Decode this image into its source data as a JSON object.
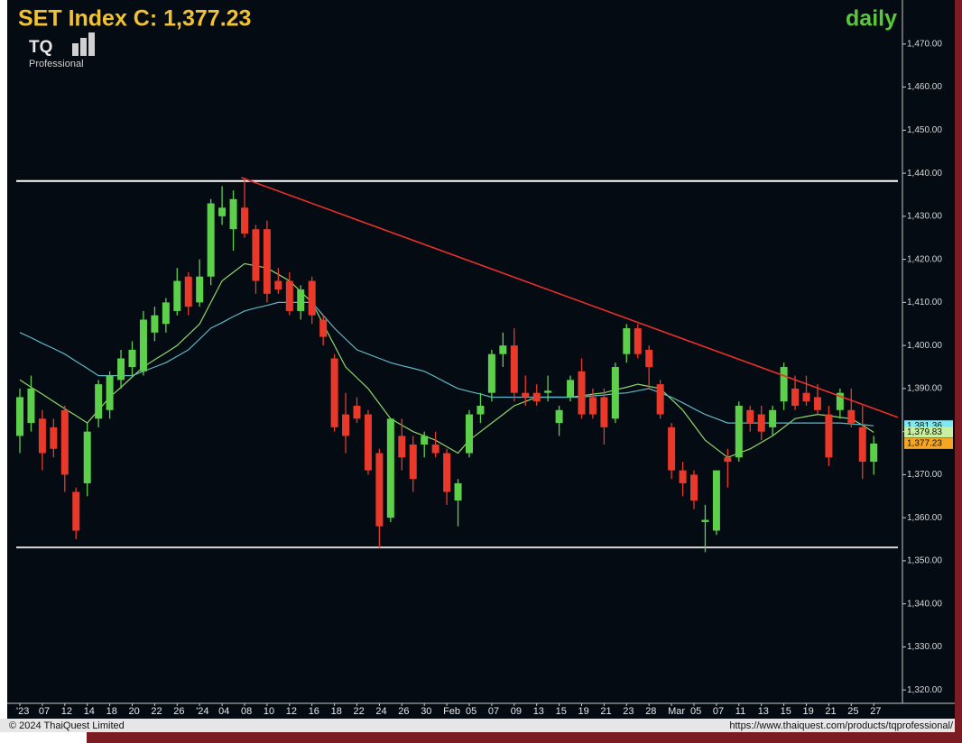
{
  "chart_data": {
    "type": "candlestick",
    "title": "SET Index C: 1,377.23",
    "period": "daily",
    "logo": {
      "mark": "TQ",
      "caption": "Professional"
    },
    "footer_left": "© 2024 ThaiQuest Limited",
    "footer_right": "https://www.thaiquest.com/products/tqprofessional/",
    "categories": [
      "'23",
      null,
      "07",
      null,
      "12",
      null,
      "14",
      null,
      "18",
      null,
      "20",
      null,
      "22",
      null,
      "26",
      null,
      "'24",
      null,
      "04",
      null,
      "08",
      null,
      "10",
      null,
      "12",
      null,
      "16",
      null,
      "18",
      null,
      "22",
      null,
      "24",
      null,
      "26",
      null,
      "30",
      null,
      "Feb",
      null,
      "05",
      null,
      "07",
      null,
      "09",
      null,
      "13",
      null,
      "15",
      null,
      "19",
      null,
      "21",
      null,
      "23",
      null,
      "28",
      null,
      "Mar",
      null,
      "05",
      null,
      "07",
      null,
      "11",
      null,
      "13",
      null,
      "15",
      null,
      "19",
      null,
      "21",
      null,
      "25",
      null,
      "27"
    ],
    "open": [
      1379,
      1382,
      1383,
      1381,
      1385,
      1366,
      1368,
      1383,
      1385,
      1392,
      1395,
      1394,
      1403,
      1405,
      1408,
      1416,
      1410,
      1416,
      1430,
      1427,
      1432,
      1427,
      1427,
      1415,
      1415,
      1408,
      1415,
      1406,
      1397,
      1384,
      1386,
      1384,
      1375,
      1360,
      1379,
      1377,
      1377,
      1377,
      1375,
      1364,
      1375,
      1384,
      1389,
      1398,
      1400,
      1389,
      1389,
      1389,
      1382,
      1388,
      1394,
      1388,
      1388,
      1383,
      1398,
      1404,
      1399,
      1391,
      1381,
      1371,
      1370,
      1359,
      1357,
      1374,
      1374,
      1385,
      1384,
      1381,
      1387,
      1390,
      1389,
      1388,
      1384,
      1385,
      1385,
      1381,
      1373
    ],
    "high": [
      1390,
      1393,
      1385,
      1383,
      1386,
      1367,
      1382,
      1392,
      1394,
      1399,
      1401,
      1408,
      1409,
      1411,
      1418,
      1417,
      1420,
      1434,
      1437,
      1436,
      1439,
      1428,
      1429,
      1418,
      1417,
      1414,
      1416,
      1407,
      1398,
      1389,
      1388,
      1385,
      1376,
      1383,
      1383,
      1379,
      1380,
      1380,
      1376,
      1369,
      1385,
      1389,
      1399,
      1403,
      1404,
      1393,
      1391,
      1393,
      1386,
      1393,
      1397,
      1390,
      1390,
      1396,
      1405,
      1405,
      1400,
      1392,
      1382,
      1373,
      1371,
      1363,
      1371,
      1376,
      1387,
      1386,
      1386,
      1386,
      1396,
      1393,
      1393,
      1391,
      1386,
      1390,
      1390,
      1386,
      1379
    ],
    "low": [
      1375,
      1380,
      1371,
      1374,
      1366,
      1355,
      1365,
      1381,
      1383,
      1390,
      1393,
      1393,
      1401,
      1403,
      1407,
      1407,
      1409,
      1414,
      1428,
      1422,
      1425,
      1412,
      1410,
      1412,
      1407,
      1406,
      1405,
      1400,
      1380,
      1375,
      1382,
      1370,
      1353,
      1359,
      1371,
      1366,
      1374,
      1374,
      1363,
      1358,
      1374,
      1382,
      1387,
      1395,
      1387,
      1386,
      1386,
      1387,
      1379,
      1387,
      1383,
      1383,
      1377,
      1382,
      1396,
      1397,
      1390,
      1383,
      1369,
      1365,
      1362,
      1352,
      1356,
      1367,
      1373,
      1380,
      1378,
      1379,
      1385,
      1385,
      1386,
      1384,
      1372,
      1383,
      1381,
      1369,
      1370
    ],
    "close": [
      1388,
      1390,
      1375,
      1376,
      1370,
      1357,
      1380,
      1391,
      1393,
      1397,
      1399,
      1406,
      1407,
      1410,
      1415,
      1409,
      1416,
      1433,
      1432,
      1434,
      1426,
      1415,
      1412,
      1413,
      1408,
      1413,
      1407,
      1402,
      1381,
      1379,
      1383,
      1371,
      1358,
      1383,
      1374,
      1369,
      1379,
      1375,
      1366,
      1368,
      1384,
      1386,
      1398,
      1400,
      1389,
      1388,
      1387,
      1389.5,
      1385,
      1392,
      1384,
      1384,
      1381,
      1395,
      1404,
      1398,
      1395,
      1384,
      1371,
      1368,
      1364,
      1359.5,
      1371,
      1373,
      1386,
      1382,
      1380,
      1385,
      1395,
      1386,
      1387,
      1385,
      1374,
      1389,
      1382,
      1373,
      1377.23
    ],
    "up_color": "#5cd04a",
    "down_color": "#e8392a",
    "series": [
      {
        "color": "#8fd86a",
        "values": [
          1392,
          1390.3,
          1388.7,
          1387,
          1385.3,
          1383.7,
          1382,
          1385,
          1388,
          1390.3,
          1392.7,
          1395,
          1396.7,
          1398.3,
          1400,
          1402.5,
          1405,
          1410,
          1415,
          1417,
          1419,
          1418.5,
          1418,
          1416.5,
          1415,
          1412.5,
          1410,
          1405,
          1400,
          1395,
          1392.5,
          1390,
          1386.5,
          1383,
          1381.5,
          1380,
          1379,
          1378,
          1376.5,
          1375,
          1378,
          1380,
          1382,
          1384,
          1386,
          1387,
          1388,
          1388,
          1388,
          1388,
          1388.3,
          1388.7,
          1389,
          1389.7,
          1390.3,
          1391,
          1390.5,
          1390,
          1387.5,
          1385,
          1381.5,
          1378,
          1376,
          1374,
          1375,
          1376,
          1377.5,
          1379,
          1381,
          1383,
          1383.5,
          1384,
          1383.7,
          1383.3,
          1383,
          1381.5,
          1379.83
        ]
      },
      {
        "color": "#5fb8c8",
        "values": [
          1403,
          1401.8,
          1400.5,
          1399.3,
          1398,
          1396.3,
          1394.7,
          1393,
          1393,
          1393,
          1393,
          1394,
          1395,
          1396,
          1397.5,
          1399,
          1401.5,
          1404,
          1405.3,
          1406.7,
          1408,
          1408.7,
          1409.3,
          1410,
          1410,
          1410,
          1410,
          1407,
          1404,
          1401.5,
          1399,
          1398,
          1397,
          1396,
          1395.3,
          1394.7,
          1394,
          1392.7,
          1391.3,
          1390,
          1389.3,
          1388.7,
          1388,
          1388,
          1388,
          1388,
          1388,
          1388,
          1388,
          1388,
          1388,
          1388.3,
          1388.5,
          1388.8,
          1389,
          1389.5,
          1390,
          1389,
          1388,
          1386.7,
          1385.3,
          1384,
          1383,
          1382,
          1382,
          1382,
          1382,
          1382,
          1382,
          1382,
          1382,
          1382,
          1382,
          1382,
          1381.8,
          1381.6,
          1381.36
        ]
      }
    ],
    "hlines": [
      {
        "value": 1438.2,
        "color": "#ffffff"
      },
      {
        "value": 1353.1,
        "color": "#d8d8d8"
      }
    ],
    "trendline": {
      "values": [
        1439,
        1383.3
      ],
      "color": "#e8302a"
    },
    "price_labels": [
      {
        "value": 1381.36,
        "label": "1,381.36",
        "color": "#7fe8f0"
      },
      {
        "value": 1379.83,
        "label": "1,379.83",
        "color": "#c8f0a0"
      },
      {
        "value": 1377.23,
        "label": "1,377.23",
        "color": "#f5a623"
      }
    ],
    "ylim": [
      1316.9,
      1472.9
    ],
    "yticks": [
      {
        "value": 1320,
        "label": "1,320.00"
      },
      {
        "value": 1330,
        "label": "1,330.00"
      },
      {
        "value": 1340,
        "label": "1,340.00"
      },
      {
        "value": 1350,
        "label": "1,350.00"
      },
      {
        "value": 1360,
        "label": "1,360.00"
      },
      {
        "value": 1370,
        "label": "1,370.00"
      },
      {
        "value": 1380,
        "label": "1,380.00"
      },
      {
        "value": 1390,
        "label": "1,390.00"
      },
      {
        "value": 1400,
        "label": "1,400.00"
      },
      {
        "value": 1410,
        "label": "1,410.00"
      },
      {
        "value": 1420,
        "label": "1,420.00"
      },
      {
        "value": 1430,
        "label": "1,430.00"
      },
      {
        "value": 1440,
        "label": "1,440.00"
      },
      {
        "value": 1450,
        "label": "1,450.00"
      },
      {
        "value": 1460,
        "label": "1,460.00"
      },
      {
        "value": 1470,
        "label": "1,470.00"
      }
    ]
  }
}
